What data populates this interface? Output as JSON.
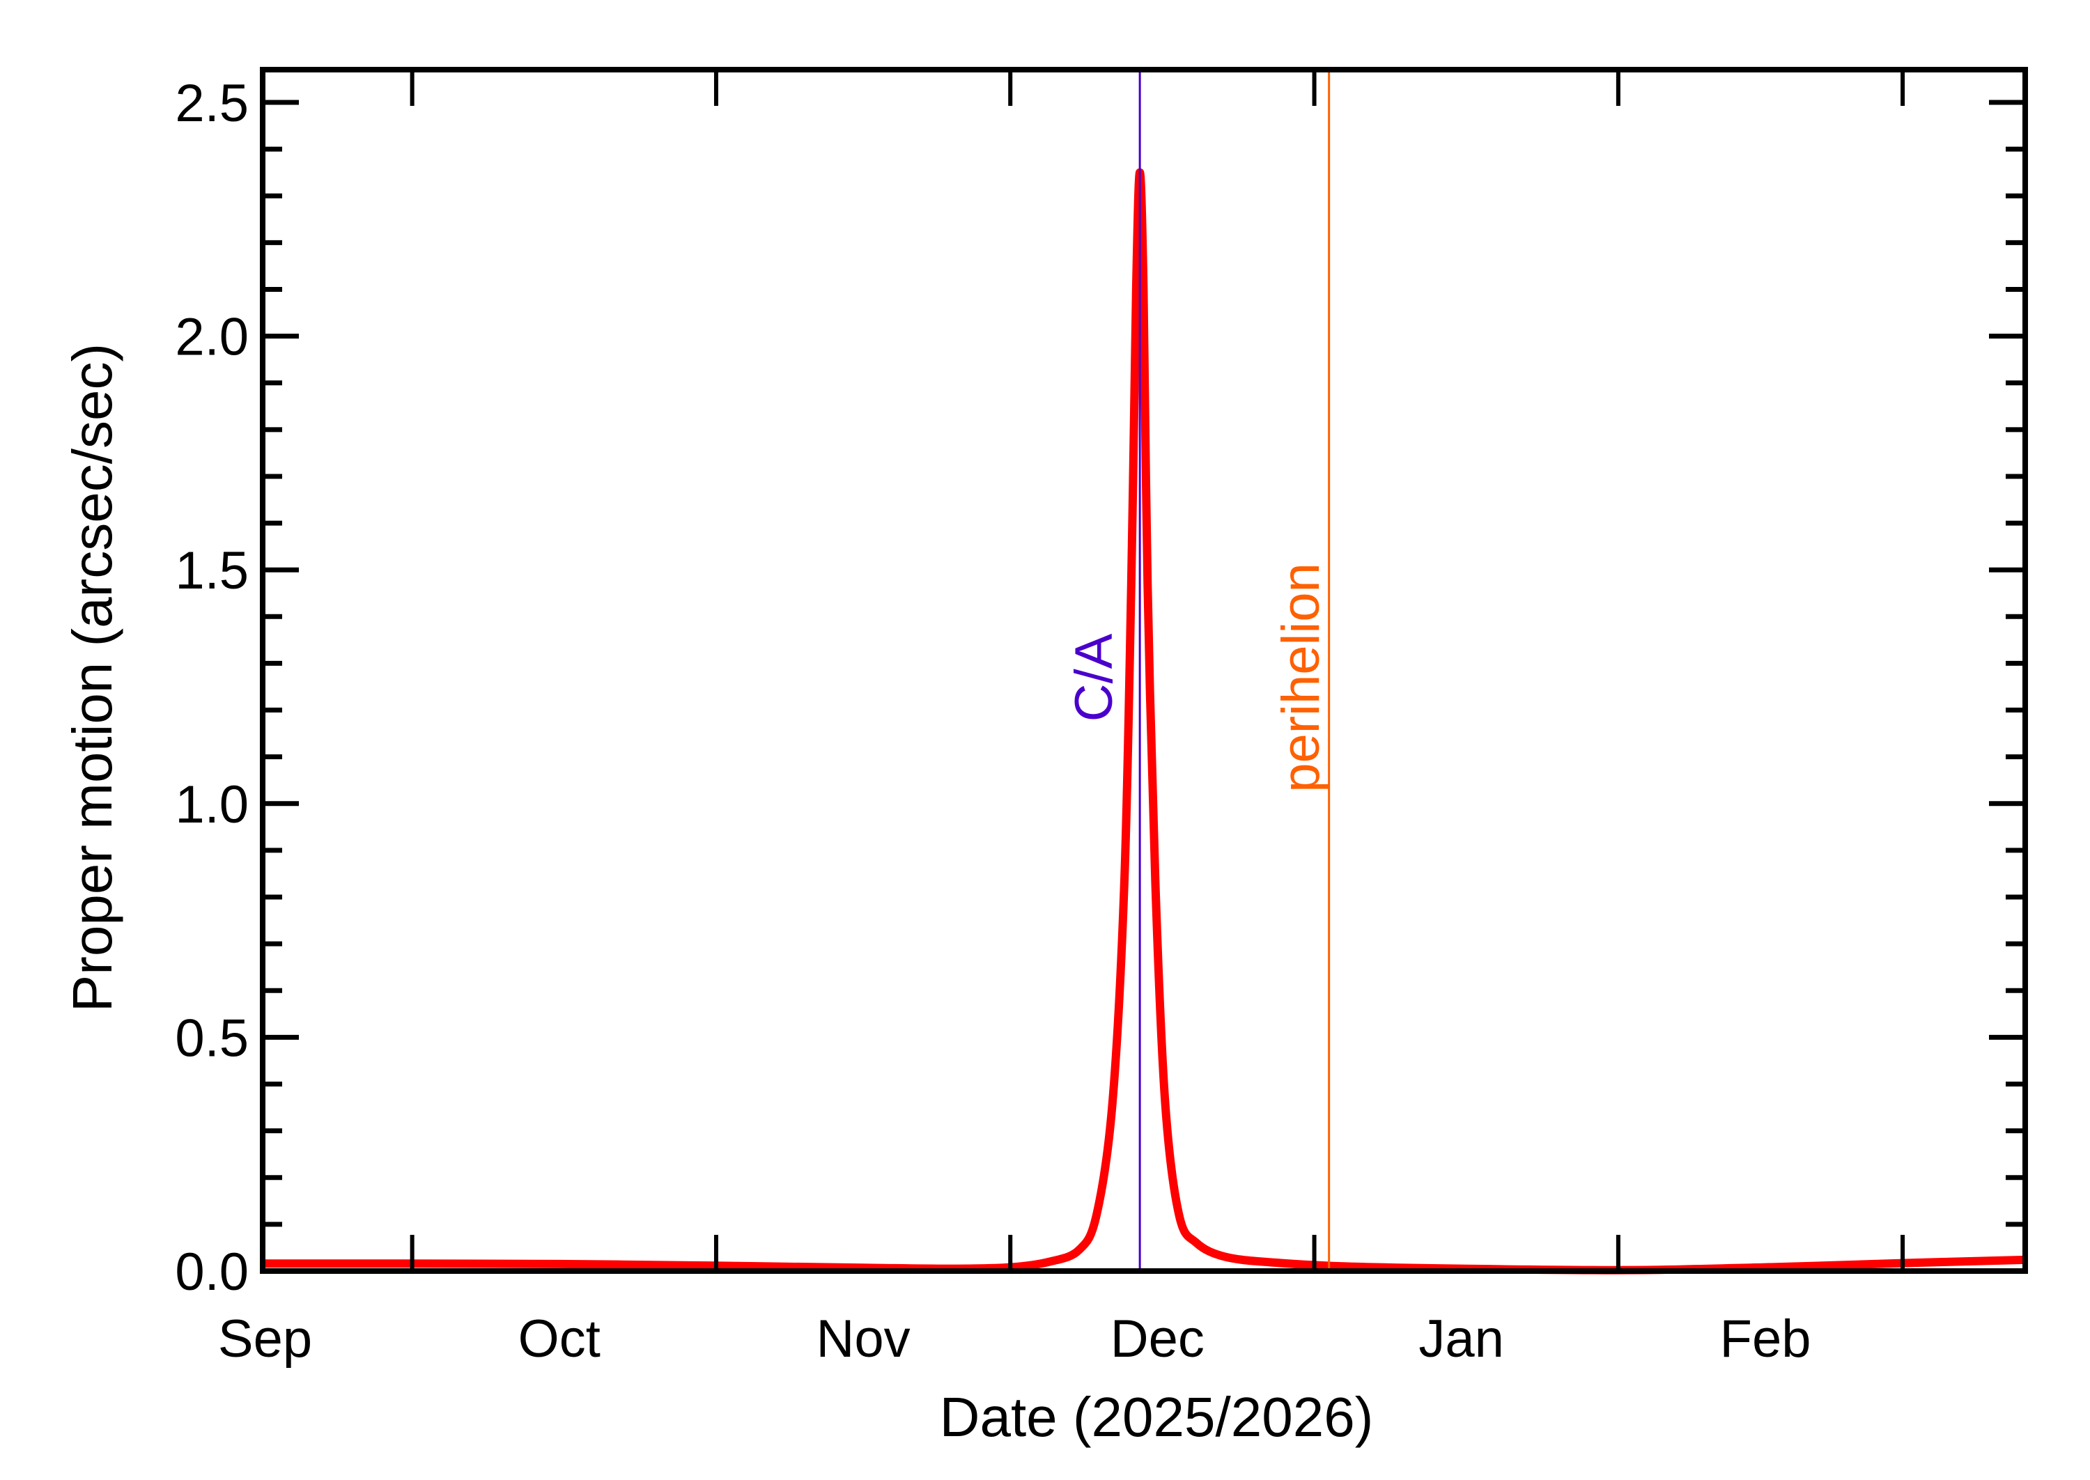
{
  "chart_data": {
    "type": "line",
    "title": "",
    "xlabel": "Date (2025/2026)",
    "ylabel": "Proper motion (arcsec/sec)",
    "xlim": [
      "2025-08-31T18:00",
      "2026-02-27T12:00"
    ],
    "ylim": [
      0.0,
      2.57
    ],
    "grid": false,
    "x_tick_labels": [
      {
        "label": "Sep",
        "date": "2025-09-01"
      },
      {
        "label": "Oct",
        "date": "2025-10-01"
      },
      {
        "label": "Nov",
        "date": "2025-11-01"
      },
      {
        "label": "Dec",
        "date": "2025-12-01"
      },
      {
        "label": "Jan",
        "date": "2026-01-01"
      },
      {
        "label": "Feb",
        "date": "2026-02-01"
      }
    ],
    "x_major_ticks": [
      "2025-09-16",
      "2025-10-17",
      "2025-11-16",
      "2025-12-17",
      "2026-01-17",
      "2026-02-15"
    ],
    "y_tick_labels": [
      "0.0",
      "0.5",
      "1.0",
      "1.5",
      "2.0",
      "2.5"
    ],
    "y_major_step": 0.5,
    "y_minor_step": 0.1,
    "series": [
      {
        "color": "#FF0000",
        "points": [
          [
            "2025-08-31T18:00",
            0.016
          ],
          [
            "2025-09-15",
            0.016
          ],
          [
            "2025-10-01",
            0.015
          ],
          [
            "2025-10-15",
            0.012
          ],
          [
            "2025-11-01",
            0.007
          ],
          [
            "2025-11-10",
            0.005
          ],
          [
            "2025-11-16",
            0.008
          ],
          [
            "2025-11-20",
            0.02
          ],
          [
            "2025-11-23",
            0.045
          ],
          [
            "2025-11-24T19:00",
            0.12
          ],
          [
            "2025-11-26T10:00",
            0.36
          ],
          [
            "2025-11-27T15:00",
            0.83
          ],
          [
            "2025-11-28T08:00",
            1.47
          ],
          [
            "2025-11-28T20:00",
            2.1
          ],
          [
            "2025-11-29T05:00",
            2.35
          ],
          [
            "2025-11-29T14:00",
            2.1
          ],
          [
            "2025-11-30T00:00",
            1.47
          ],
          [
            "2025-11-30T19:00",
            0.83
          ],
          [
            "2025-12-01T19:00",
            0.36
          ],
          [
            "2025-12-03T05:00",
            0.12
          ],
          [
            "2025-12-05",
            0.06
          ],
          [
            "2025-12-08",
            0.03
          ],
          [
            "2025-12-13",
            0.018
          ],
          [
            "2025-12-20",
            0.01
          ],
          [
            "2026-01-01",
            0.005
          ],
          [
            "2026-01-18",
            0.002
          ],
          [
            "2026-02-01",
            0.008
          ],
          [
            "2026-02-15",
            0.017
          ],
          [
            "2026-02-27T12:00",
            0.024
          ]
        ]
      }
    ],
    "annotations": [
      {
        "label": "C/A",
        "date": "2025-11-29T05:00",
        "color": "#4A00CC"
      },
      {
        "label": "perihelion",
        "date": "2025-12-18T12:00",
        "color": "#FF6000"
      }
    ]
  }
}
